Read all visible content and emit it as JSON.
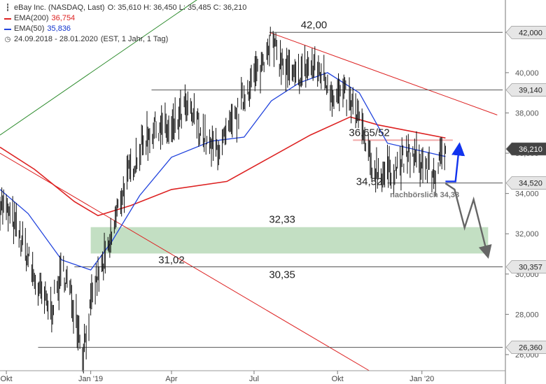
{
  "legend": {
    "instrument": "eBay Inc. (NASDAQ, Last)",
    "ohlc": "O: 35,610  H: 36,450  L: 35,485  C: 36,210",
    "ema200_label": "EMA(200)",
    "ema200_value": "36,754",
    "ema50_label": "EMA(50)",
    "ema50_value": "35,836",
    "period": "24.09.2018 - 28.01.2020",
    "period_detail": "(EST, 1 Jahr, 1 Tag)",
    "colors": {
      "ema200": "#dd2222",
      "ema50": "#2244dd"
    },
    "icons": [
      "candlestick-icon",
      "clock-icon"
    ]
  },
  "chart_data": {
    "type": "line",
    "subtype": "candlestick",
    "ylim": [
      25.2,
      43.4
    ],
    "x_ticks": [
      {
        "label": "Okt",
        "date": "2018-10-01"
      },
      {
        "label": "Jan '19",
        "date": "2019-01-02"
      },
      {
        "label": "Apr",
        "date": "2019-04-01"
      },
      {
        "label": "Jul",
        "date": "2019-07-01"
      },
      {
        "label": "Okt",
        "date": "2019-10-01"
      },
      {
        "label": "Jan '20",
        "date": "2020-01-02"
      }
    ],
    "y_ticks": [
      {
        "value": 26,
        "label": "26,000"
      },
      {
        "value": 28,
        "label": "28,000"
      },
      {
        "value": 30,
        "label": "30,000"
      },
      {
        "value": 32,
        "label": "32,000"
      },
      {
        "value": 34,
        "label": "34,000"
      },
      {
        "value": 36,
        "label": "36,000"
      },
      {
        "value": 38,
        "label": "38,000"
      },
      {
        "value": 40,
        "label": "40,000"
      },
      {
        "value": 42,
        "label": "42,000"
      }
    ],
    "price_flags": [
      {
        "value": 42.0,
        "label": "42,000"
      },
      {
        "value": 39.14,
        "label": "39,140"
      },
      {
        "value": 36.21,
        "label": "36,210",
        "current": true
      },
      {
        "value": 34.52,
        "label": "34,520"
      },
      {
        "value": 30.357,
        "label": "30,357"
      },
      {
        "value": 26.36,
        "label": "26,360"
      }
    ],
    "price_path": [
      [
        "2018-09-24",
        33.6
      ],
      [
        "2018-10-08",
        32.6
      ],
      [
        "2018-10-22",
        31.2
      ],
      [
        "2018-11-05",
        29.2
      ],
      [
        "2018-11-19",
        28.2
      ],
      [
        "2018-12-03",
        30.2
      ],
      [
        "2018-12-17",
        28.0
      ],
      [
        "2018-12-24",
        26.1
      ],
      [
        "2019-01-07",
        29.5
      ],
      [
        "2019-01-21",
        31.0
      ],
      [
        "2019-02-04",
        33.8
      ],
      [
        "2019-02-18",
        35.5
      ],
      [
        "2019-03-04",
        36.8
      ],
      [
        "2019-03-18",
        37.4
      ],
      [
        "2019-04-01",
        37.0
      ],
      [
        "2019-04-15",
        38.2
      ],
      [
        "2019-04-29",
        37.6
      ],
      [
        "2019-05-13",
        36.2
      ],
      [
        "2019-05-27",
        36.4
      ],
      [
        "2019-06-10",
        37.6
      ],
      [
        "2019-06-24",
        39.3
      ],
      [
        "2019-07-08",
        40.2
      ],
      [
        "2019-07-18",
        41.7
      ],
      [
        "2019-08-01",
        40.4
      ],
      [
        "2019-08-15",
        39.6
      ],
      [
        "2019-08-29",
        40.3
      ],
      [
        "2019-09-12",
        40.1
      ],
      [
        "2019-09-26",
        39.0
      ],
      [
        "2019-10-10",
        38.8
      ],
      [
        "2019-10-24",
        37.8
      ],
      [
        "2019-11-07",
        35.3
      ],
      [
        "2019-11-21",
        35.0
      ],
      [
        "2019-12-05",
        35.3
      ],
      [
        "2019-12-19",
        35.9
      ],
      [
        "2020-01-02",
        35.5
      ],
      [
        "2020-01-16",
        34.9
      ],
      [
        "2020-01-28",
        36.21
      ]
    ],
    "series": [
      {
        "name": "EMA(200)",
        "color": "#dd2222",
        "last": 36.754,
        "points": [
          [
            "2018-09-24",
            36.3
          ],
          [
            "2018-11-01",
            35.2
          ],
          [
            "2018-12-15",
            33.6
          ],
          [
            "2019-01-10",
            32.9
          ],
          [
            "2019-02-15",
            33.4
          ],
          [
            "2019-04-01",
            34.2
          ],
          [
            "2019-06-01",
            34.6
          ],
          [
            "2019-07-15",
            35.7
          ],
          [
            "2019-09-01",
            36.9
          ],
          [
            "2019-10-15",
            37.8
          ],
          [
            "2019-11-15",
            37.4
          ],
          [
            "2020-01-28",
            36.754
          ]
        ]
      },
      {
        "name": "EMA(50)",
        "color": "#2244dd",
        "last": 35.836,
        "points": [
          [
            "2018-09-24",
            34.2
          ],
          [
            "2018-10-25",
            33.0
          ],
          [
            "2018-12-01",
            30.7
          ],
          [
            "2019-01-02",
            30.2
          ],
          [
            "2019-01-25",
            31.6
          ],
          [
            "2019-02-25",
            33.9
          ],
          [
            "2019-04-01",
            35.8
          ],
          [
            "2019-05-15",
            36.6
          ],
          [
            "2019-06-20",
            36.8
          ],
          [
            "2019-07-20",
            38.6
          ],
          [
            "2019-08-20",
            39.5
          ],
          [
            "2019-09-20",
            40.0
          ],
          [
            "2019-10-25",
            39.0
          ],
          [
            "2019-11-25",
            36.5
          ],
          [
            "2020-01-28",
            35.836
          ]
        ]
      }
    ],
    "lines": [
      {
        "name": "trend-line-green",
        "color": "#2a8a2a",
        "from": [
          "2018-09-24",
          36.9
        ],
        "to": [
          "2019-07-15",
          46.0
        ]
      },
      {
        "name": "resistance-line-red",
        "color": "#dd2222",
        "from": [
          "2019-07-18",
          42.0
        ],
        "to": [
          "2020-03-25",
          37.9
        ]
      },
      {
        "name": "long-red-line",
        "color": "#dd2222",
        "from": [
          "2018-09-24",
          36.0
        ],
        "to": [
          "2019-11-05",
          25.2
        ]
      },
      {
        "name": "level-42",
        "color": "#555555",
        "from": [
          "2019-07-18",
          42.0
        ],
        "to": [
          "2020-03-31",
          42.0
        ]
      },
      {
        "name": "level-39-14",
        "color": "#555555",
        "from": [
          "2019-03-10",
          39.14
        ],
        "to": [
          "2020-03-31",
          39.14
        ]
      },
      {
        "name": "level-34-52",
        "color": "#555555",
        "from": [
          "2019-11-25",
          34.52
        ],
        "to": [
          "2020-03-31",
          34.52
        ]
      },
      {
        "name": "level-30-357",
        "color": "#555555",
        "from": [
          "2018-12-15",
          30.357
        ],
        "to": [
          "2020-03-31",
          30.357
        ]
      },
      {
        "name": "level-26-36",
        "color": "#555555",
        "from": [
          "2018-11-05",
          26.36
        ],
        "to": [
          "2020-03-31",
          26.36
        ]
      },
      {
        "name": "level-36-65",
        "color": "#f0a8a8",
        "from": [
          "2019-10-18",
          36.65
        ],
        "to": [
          "2020-02-05",
          36.65
        ]
      }
    ],
    "zones": [
      {
        "name": "support-zone",
        "color": "#b9d9b9",
        "y_from": 31.02,
        "y_to": 32.33,
        "x_from": "2019-01-02",
        "x_to": "2020-03-15"
      }
    ],
    "annotations": [
      {
        "text": "42,00",
        "x": "2019-09-05",
        "y": 42.0
      },
      {
        "text": "36,65/52",
        "x": "2019-11-05",
        "y": 36.65
      },
      {
        "text": "34,52",
        "x": "2019-11-05",
        "y": 34.52
      },
      {
        "text": "nachbörslich 34,33",
        "x": "2020-01-05",
        "y": 34.33
      },
      {
        "text": "32,33",
        "x": "2019-08-01",
        "y": 32.33
      },
      {
        "text": "31,02",
        "x": "2019-04-01",
        "y": 31.02
      },
      {
        "text": "30,35",
        "x": "2019-08-01",
        "y": 30.35
      }
    ],
    "arrows": [
      {
        "name": "blue-up-arrow",
        "color": "#1133ee",
        "points": [
          [
            "2020-01-28",
            34.6
          ],
          [
            "2020-02-08",
            34.6
          ],
          [
            "2020-02-12",
            36.3
          ]
        ]
      },
      {
        "name": "grey-down-arrow",
        "color": "#666666",
        "points": [
          [
            "2020-01-28",
            34.5
          ],
          [
            "2020-02-07",
            34.2
          ],
          [
            "2020-02-18",
            32.3
          ],
          [
            "2020-02-28",
            33.7
          ],
          [
            "2020-03-14",
            31.0
          ]
        ]
      }
    ]
  }
}
